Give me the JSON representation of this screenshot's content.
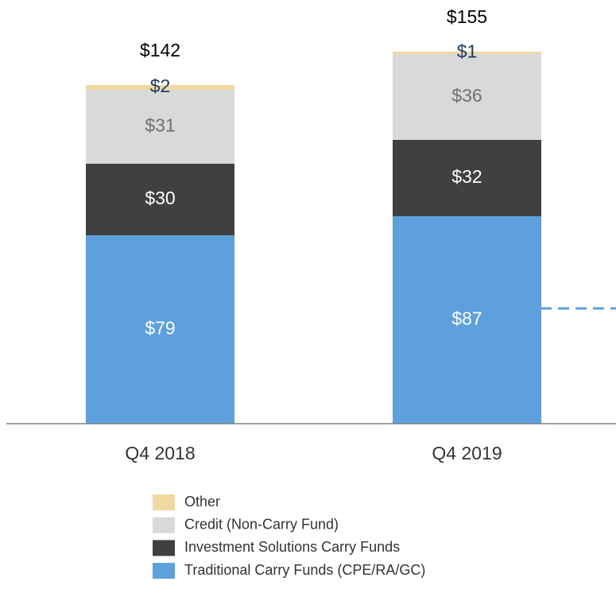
{
  "chart_data": {
    "type": "stacked_bar",
    "categories": [
      "Q4 2018",
      "Q4 2019"
    ],
    "series": [
      {
        "name": "Traditional Carry Funds (CPE/RA/GC)",
        "color": "#5ea0dd",
        "label_color": "#ffffff",
        "values": [
          79,
          87
        ],
        "value_labels": [
          "$79",
          "$87"
        ]
      },
      {
        "name": "Investment Solutions Carry Funds",
        "color": "#404040",
        "label_color": "#ffffff",
        "values": [
          30,
          32
        ],
        "value_labels": [
          "$30",
          "$32"
        ]
      },
      {
        "name": "Credit (Non-Carry Fund)",
        "color": "#d9d9d9",
        "label_color": "#707070",
        "values": [
          31,
          36
        ],
        "value_labels": [
          "$31",
          "$36"
        ]
      },
      {
        "name": "Other",
        "color": "#f0d9a0",
        "label_color": "#1f3864",
        "values": [
          2,
          1
        ],
        "value_labels": [
          "$2",
          "$1"
        ]
      }
    ],
    "totals": [
      142,
      155
    ],
    "total_labels": [
      "$142",
      "$155"
    ]
  }
}
